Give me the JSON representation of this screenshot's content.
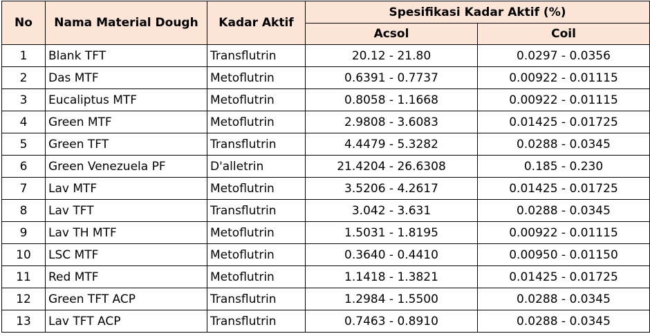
{
  "headers": {
    "no": "No",
    "nama_material": "Nama Material Dough",
    "kadar_aktif": "Kadar Aktif",
    "spesifikasi": "Spesifikasi Kadar Aktif (%)",
    "acsol": "Acsol",
    "coil": "Coil"
  },
  "rows": [
    {
      "no": "1",
      "name": "Blank TFT",
      "kadar": "Transflutrin",
      "acsol": "20.12 - 21.80",
      "coil": "0.0297 - 0.0356"
    },
    {
      "no": "2",
      "name": "Das MTF",
      "kadar": "Metoflutrin",
      "acsol": "0.6391 - 0.7737",
      "coil": "0.00922 - 0.01115"
    },
    {
      "no": "3",
      "name": "Eucaliptus MTF",
      "kadar": "Metoflutrin",
      "acsol": "0.8058 - 1.1668",
      "coil": "0.00922 - 0.01115"
    },
    {
      "no": "4",
      "name": "Green MTF",
      "kadar": "Metoflutrin",
      "acsol": "2.9808 - 3.6083",
      "coil": "0.01425 - 0.01725"
    },
    {
      "no": "5",
      "name": "Green TFT",
      "kadar": "Transflutrin",
      "acsol": "4.4479 - 5.3282",
      "coil": "0.0288 - 0.0345"
    },
    {
      "no": "6",
      "name": "Green Venezuela PF",
      "kadar": "D'alletrin",
      "acsol": "21.4204 - 26.6308",
      "coil": "0.185 - 0.230"
    },
    {
      "no": "7",
      "name": "Lav MTF",
      "kadar": "Metoflutrin",
      "acsol": "3.5206 - 4.2617",
      "coil": "0.01425 - 0.01725"
    },
    {
      "no": "8",
      "name": "Lav TFT",
      "kadar": "Transflutrin",
      "acsol": "3.042 - 3.631",
      "coil": "0.0288 - 0.0345"
    },
    {
      "no": "9",
      "name": "Lav TH MTF",
      "kadar": "Metoflutrin",
      "acsol": "1.5031 - 1.8195",
      "coil": "0.00922 - 0.01115"
    },
    {
      "no": "10",
      "name": "LSC MTF",
      "kadar": "Metoflutrin",
      "acsol": "0.3640 - 0.4410",
      "coil": "0.00950 - 0.01150"
    },
    {
      "no": "11",
      "name": "Red MTF",
      "kadar": "Metoflutrin",
      "acsol": "1.1418 - 1.3821",
      "coil": "0.01425 - 0.01725"
    },
    {
      "no": "12",
      "name": "Green TFT ACP",
      "kadar": "Transflutrin",
      "acsol": "1.2984 - 1.5500",
      "coil": "0.0288 - 0.0345"
    },
    {
      "no": "13",
      "name": "Lav TFT ACP",
      "kadar": "Transflutrin",
      "acsol": "0.7463 - 0.8910",
      "coil": "0.0288 - 0.0345"
    }
  ]
}
